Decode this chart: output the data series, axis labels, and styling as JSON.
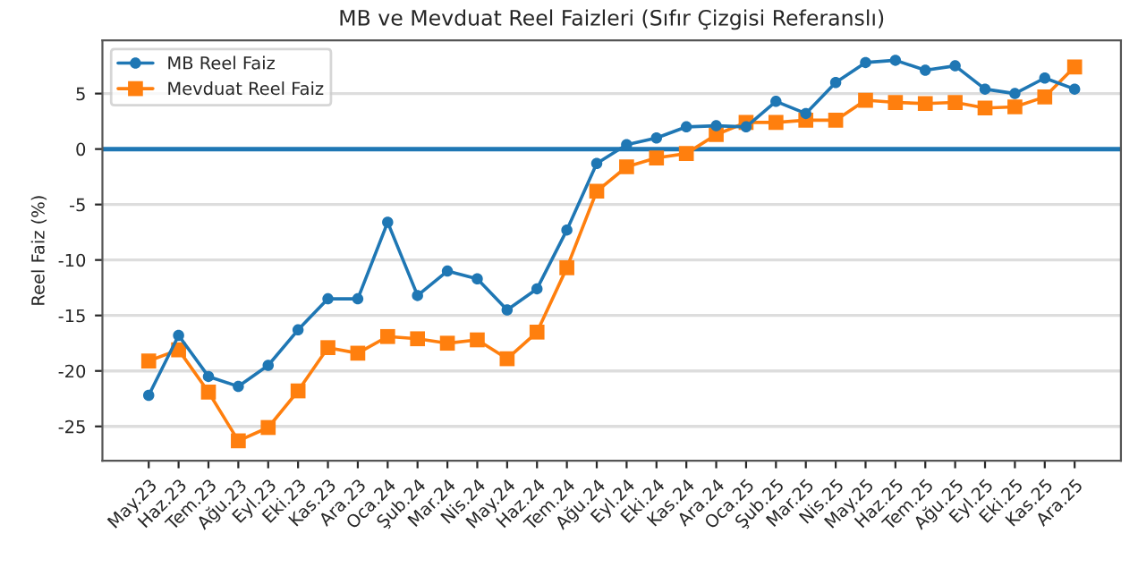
{
  "chart_data": {
    "type": "line",
    "title": "MB ve Mevduat Reel Faizleri (Sıfır Çizgisi Referanslı)",
    "ylabel": "Reel Faiz (%)",
    "categories": [
      "May.23",
      "Haz.23",
      "Tem.23",
      "Ağu.23",
      "Eyl.23",
      "Eki.23",
      "Kas.23",
      "Ara.23",
      "Oca.24",
      "Şub.24",
      "Mar.24",
      "Nis.24",
      "May.24",
      "Haz.24",
      "Tem.24",
      "Ağu.24",
      "Eyl.24",
      "Eki.24",
      "Kas.24",
      "Ara.24",
      "Oca.25",
      "Şub.25",
      "Mar.25",
      "Nis.25",
      "May.25",
      "Haz.25",
      "Tem.25",
      "Ağu.25",
      "Eyl.25",
      "Eki.25",
      "Kas.25",
      "Ara.25"
    ],
    "series": [
      {
        "name": "MB Reel Faiz",
        "color": "#1f77b4",
        "marker": "circle",
        "values": [
          -22.2,
          -16.8,
          -20.5,
          -21.4,
          -19.5,
          -16.3,
          -13.5,
          -13.5,
          -6.6,
          -13.2,
          -11.0,
          -11.7,
          -14.5,
          -12.6,
          -7.3,
          -1.3,
          0.4,
          1.0,
          2.0,
          2.1,
          2.0,
          4.3,
          3.2,
          6.0,
          7.8,
          8.0,
          7.1,
          7.5,
          5.4,
          5.0,
          6.4,
          5.4
        ]
      },
      {
        "name": "Mevduat Reel Faiz",
        "color": "#ff7f0e",
        "marker": "square",
        "values": [
          -19.1,
          -18.1,
          -21.9,
          -26.3,
          -25.1,
          -21.8,
          -17.9,
          -18.4,
          -16.9,
          -17.1,
          -17.5,
          -17.2,
          -18.9,
          -16.5,
          -10.7,
          -3.8,
          -1.6,
          -0.8,
          -0.4,
          1.3,
          2.4,
          2.4,
          2.6,
          2.6,
          4.4,
          4.2,
          4.1,
          4.2,
          3.7,
          3.8,
          4.7,
          7.4
        ]
      }
    ],
    "ylim": [
      -28.1,
      9.8
    ],
    "yticks": [
      -25,
      -20,
      -15,
      -10,
      -5,
      0,
      5
    ],
    "ref_lines": [
      {
        "axis": "y",
        "value": 0,
        "color": "#1f77b4",
        "line_style": "solid"
      }
    ],
    "grid": "y",
    "legend": "top left"
  }
}
